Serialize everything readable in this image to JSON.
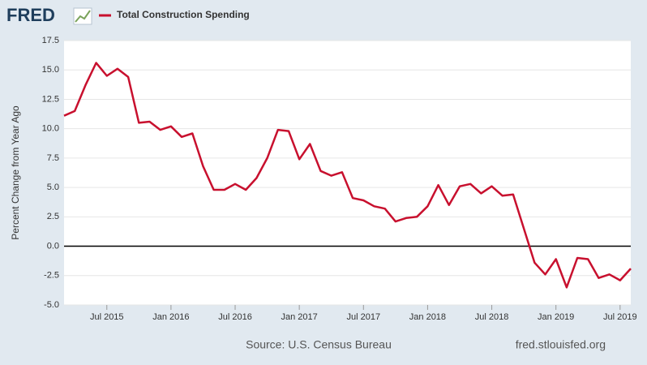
{
  "brand": "FRED",
  "chart_data": {
    "type": "line",
    "ylabel": "Percent Change from Year Ago",
    "source": "Source: U.S. Census Bureau",
    "site": "fred.stlouisfed.org",
    "x": [
      "2015-03",
      "2015-04",
      "2015-05",
      "2015-06",
      "2015-07",
      "2015-08",
      "2015-09",
      "2015-10",
      "2015-11",
      "2015-12",
      "2016-01",
      "2016-02",
      "2016-03",
      "2016-04",
      "2016-05",
      "2016-06",
      "2016-07",
      "2016-08",
      "2016-09",
      "2016-10",
      "2016-11",
      "2016-12",
      "2017-01",
      "2017-02",
      "2017-03",
      "2017-04",
      "2017-05",
      "2017-06",
      "2017-07",
      "2017-08",
      "2017-09",
      "2017-10",
      "2017-11",
      "2017-12",
      "2018-01",
      "2018-02",
      "2018-03",
      "2018-04",
      "2018-05",
      "2018-06",
      "2018-07",
      "2018-08",
      "2018-09",
      "2018-10",
      "2018-11",
      "2018-12",
      "2019-01",
      "2019-02",
      "2019-03",
      "2019-04",
      "2019-05",
      "2019-06",
      "2019-07",
      "2019-08"
    ],
    "series": [
      {
        "name": "Total Construction Spending",
        "color": "#c8102e",
        "values": [
          11.1,
          11.5,
          13.7,
          15.6,
          14.5,
          15.1,
          14.4,
          10.5,
          10.6,
          9.9,
          10.2,
          9.3,
          9.6,
          6.8,
          4.8,
          4.8,
          5.3,
          4.8,
          5.8,
          7.5,
          9.9,
          9.8,
          7.4,
          8.7,
          6.4,
          6.0,
          6.3,
          4.1,
          3.9,
          3.4,
          3.2,
          2.1,
          2.4,
          2.5,
          3.4,
          5.2,
          3.5,
          5.1,
          5.3,
          4.5,
          5.1,
          4.3,
          4.4,
          1.5,
          -1.4,
          -2.4,
          -1.1,
          -3.5,
          -1.0,
          -1.1,
          -2.7,
          -2.4,
          -2.9,
          -1.9
        ]
      }
    ],
    "xlim": [
      "2015-03",
      "2019-08"
    ],
    "xticks": [
      {
        "value": "2015-07",
        "label": "Jul 2015"
      },
      {
        "value": "2016-01",
        "label": "Jan 2016"
      },
      {
        "value": "2016-07",
        "label": "Jul 2016"
      },
      {
        "value": "2017-01",
        "label": "Jan 2017"
      },
      {
        "value": "2017-07",
        "label": "Jul 2017"
      },
      {
        "value": "2018-01",
        "label": "Jan 2018"
      },
      {
        "value": "2018-07",
        "label": "Jul 2018"
      },
      {
        "value": "2019-01",
        "label": "Jan 2019"
      },
      {
        "value": "2019-07",
        "label": "Jul 2019"
      }
    ],
    "ylim": [
      -5,
      17.5
    ],
    "yticks": [
      {
        "value": -5,
        "label": "-5.0"
      },
      {
        "value": -2.5,
        "label": "-2.5"
      },
      {
        "value": 0,
        "label": "0.0"
      },
      {
        "value": 2.5,
        "label": "2.5"
      },
      {
        "value": 5,
        "label": "5.0"
      },
      {
        "value": 7.5,
        "label": "7.5"
      },
      {
        "value": 10,
        "label": "10.0"
      },
      {
        "value": 12.5,
        "label": "12.5"
      },
      {
        "value": 15,
        "label": "15.0"
      },
      {
        "value": 17.5,
        "label": "17.5"
      }
    ],
    "grid": true
  }
}
